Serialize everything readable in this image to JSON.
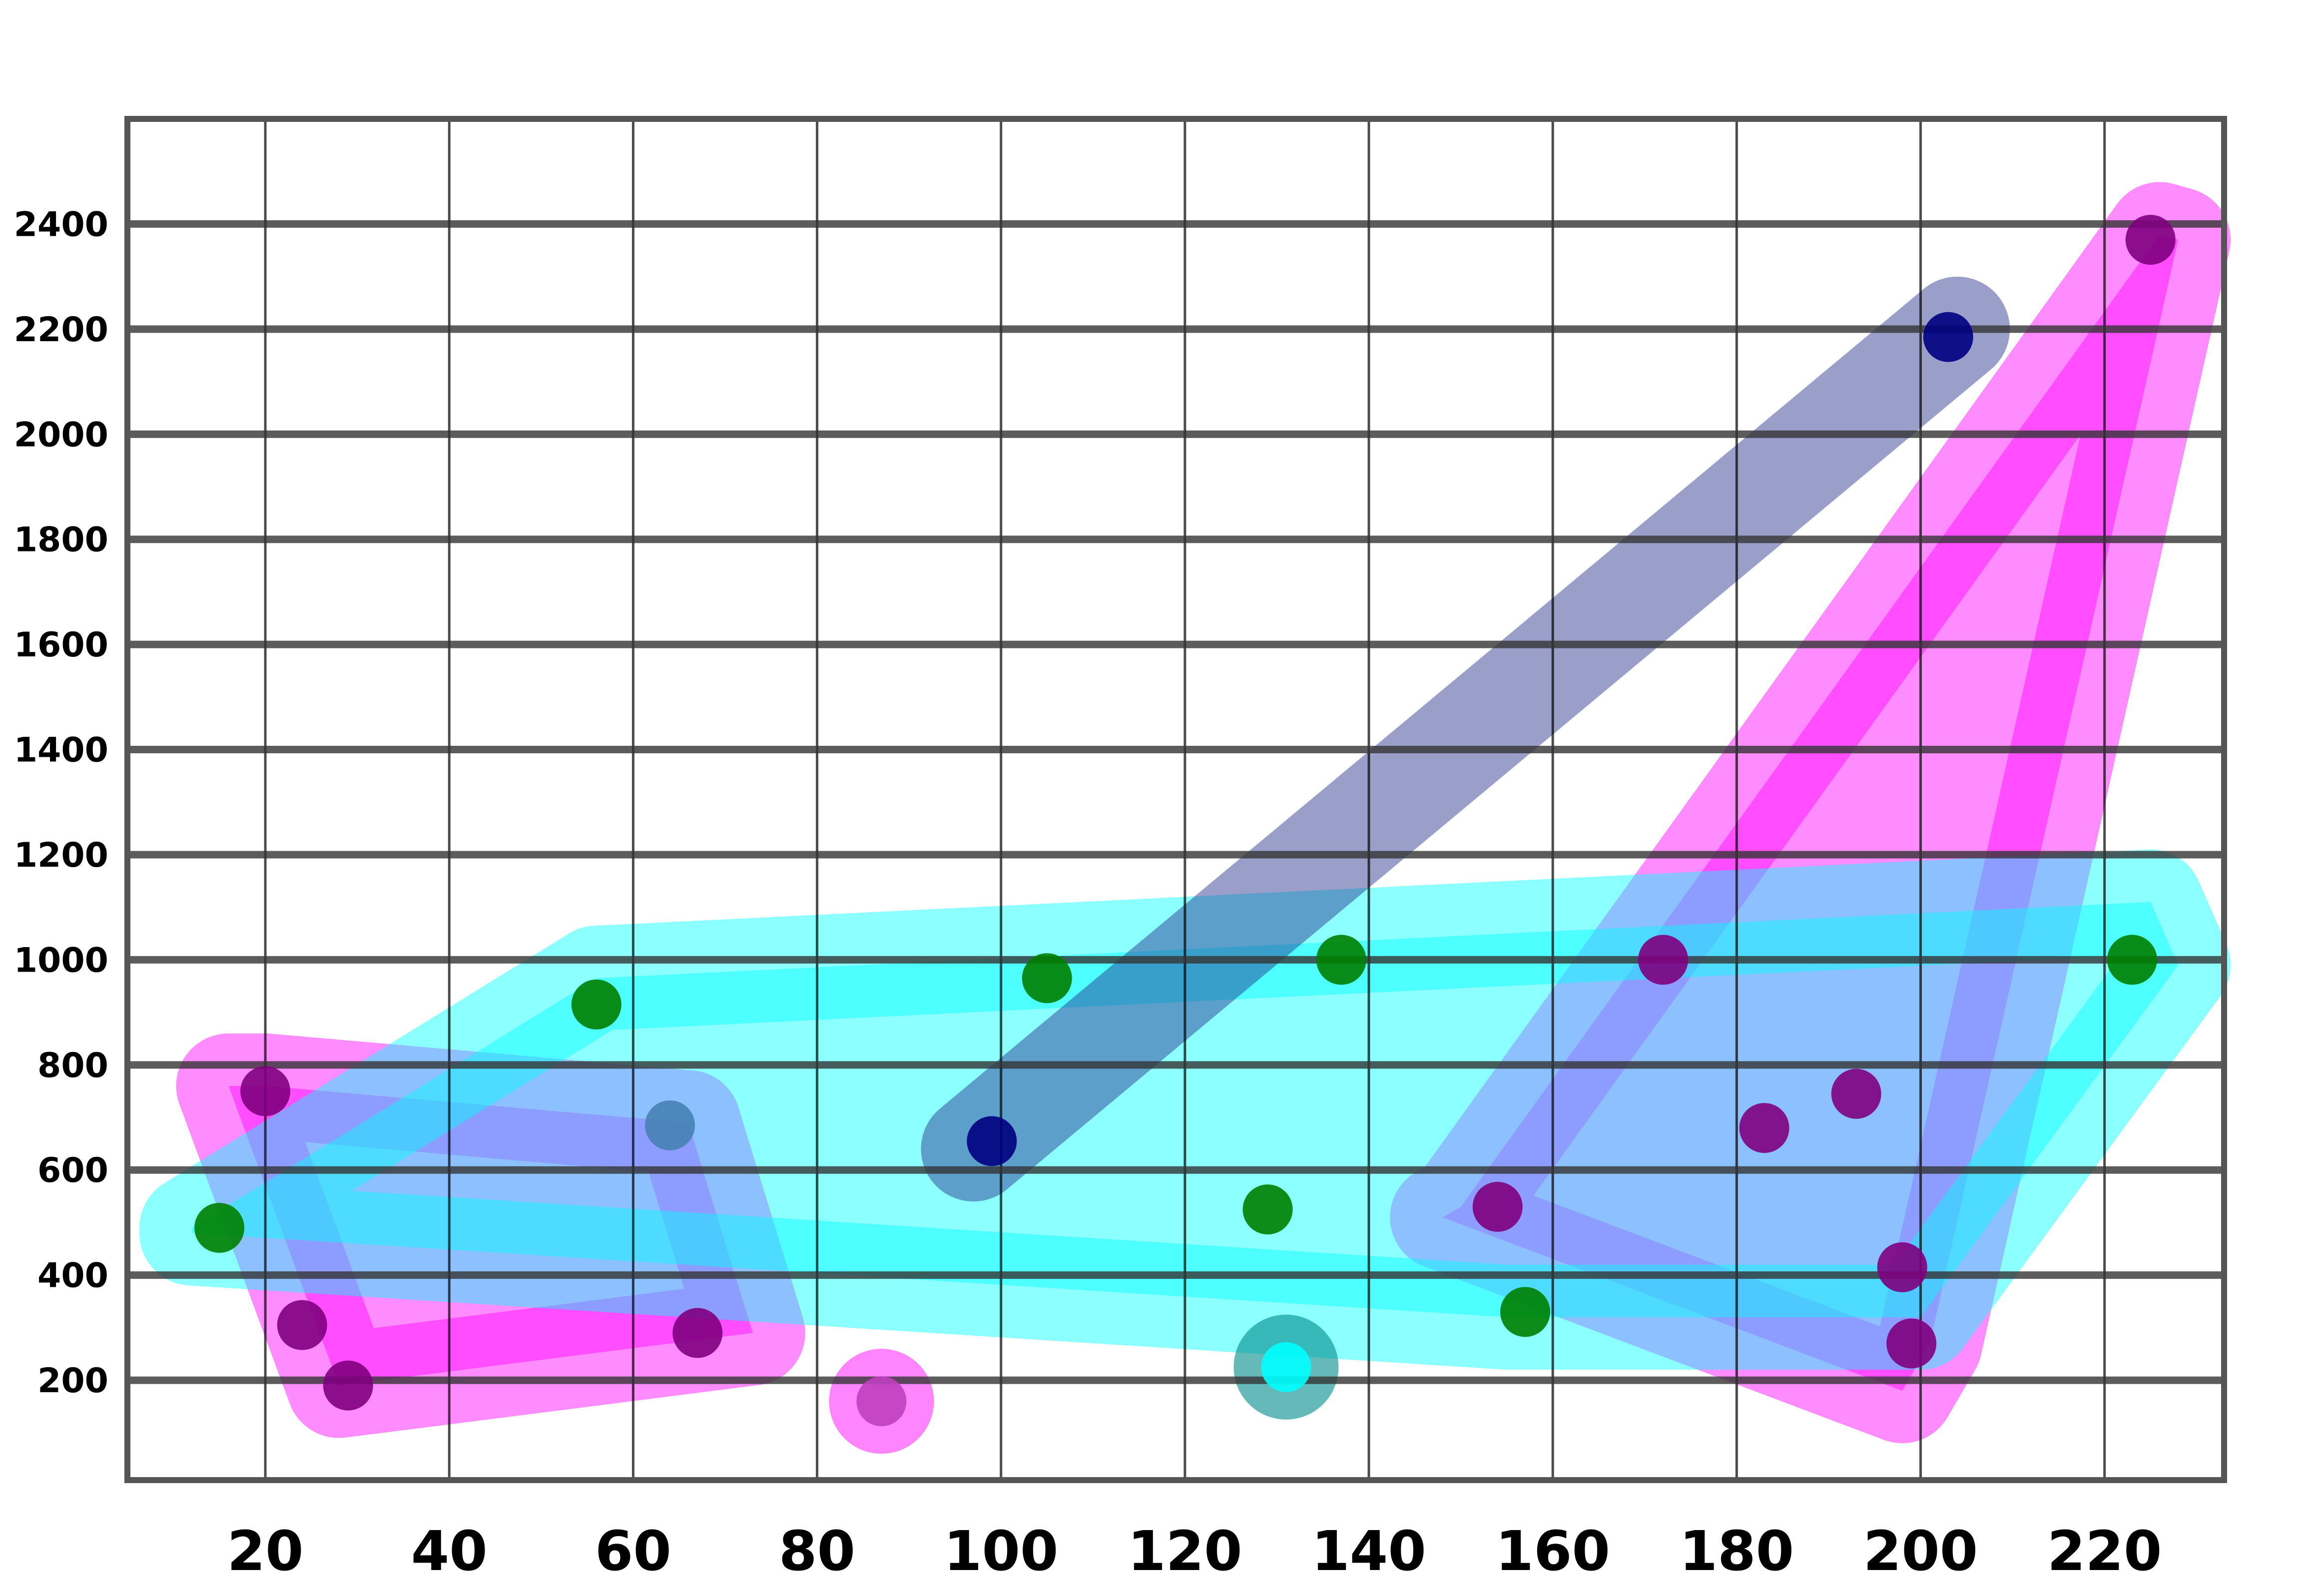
{
  "chart_data": {
    "type": "scatter",
    "title": "",
    "xlabel": "",
    "ylabel": "",
    "xlim": [
      5,
      233
    ],
    "ylim": [
      10,
      2600
    ],
    "x_ticks": [
      20,
      40,
      60,
      80,
      100,
      120,
      140,
      160,
      180,
      200,
      220
    ],
    "y_ticks": [
      200,
      400,
      600,
      800,
      1000,
      1200,
      1400,
      1600,
      1800,
      2000,
      2200,
      2400
    ],
    "x_tick_labels": [
      "20",
      "40",
      "60",
      "80",
      "100",
      "120",
      "140",
      "160",
      "180",
      "200",
      "220"
    ],
    "y_tick_labels": [
      "200",
      "400",
      "600",
      "800",
      "1000",
      "1200",
      "1400",
      "1600",
      "1800",
      "2000",
      "2200",
      "2400"
    ],
    "x_grid": true,
    "y_grid": true,
    "legend": "none",
    "series": [
      {
        "color": "#800080",
        "hull_color": "#ff00ff",
        "points": [
          [
            20,
            750
          ],
          [
            24,
            305
          ],
          [
            29,
            190
          ],
          [
            67,
            290
          ],
          [
            154,
            530
          ],
          [
            172,
            1000
          ],
          [
            183,
            680
          ],
          [
            193,
            745
          ],
          [
            198,
            415
          ],
          [
            199,
            270
          ],
          [
            225,
            2370
          ]
        ]
      },
      {
        "color": "#008000",
        "hull_color": "#00ffff",
        "points": [
          [
            15,
            490
          ],
          [
            56,
            915
          ],
          [
            105,
            965
          ],
          [
            129,
            525
          ],
          [
            137,
            1000
          ],
          [
            157,
            330
          ],
          [
            223,
            1000
          ]
        ]
      },
      {
        "color": "#000080",
        "hull_color": "#1f2a8a",
        "points": [
          [
            99,
            655
          ],
          [
            203,
            2185
          ]
        ]
      },
      {
        "color": "#4682b4",
        "hull_color": "#ffffff",
        "points": [
          [
            64,
            685
          ]
        ]
      },
      {
        "color": "#c040c0",
        "hull_color": "#ff33ff",
        "points": [
          [
            87,
            160
          ]
        ]
      },
      {
        "color": "#00ffff",
        "hull_color": "#008b8b",
        "points": [
          [
            131,
            225
          ]
        ]
      }
    ],
    "hulls": [
      {
        "series": 0,
        "polygon": [
          [
            20,
            760
          ],
          [
            66,
            690
          ],
          [
            73,
            290
          ],
          [
            28,
            190
          ],
          [
            16,
            760
          ]
        ]
      },
      {
        "series": 0,
        "polygon": [
          [
            150,
            530
          ],
          [
            226,
            2380
          ],
          [
            228,
            2370
          ],
          [
            201,
            270
          ],
          [
            198,
            180
          ],
          [
            148,
            510
          ]
        ]
      },
      {
        "series": 1,
        "polygon": [
          [
            12,
            490
          ],
          [
            56,
            965
          ],
          [
            225,
            1110
          ],
          [
            228,
            990
          ],
          [
            200,
            320
          ],
          [
            155,
            320
          ],
          [
            12,
            480
          ]
        ]
      },
      {
        "series": 2,
        "polygon": [
          [
            97,
            640
          ],
          [
            204,
            2200
          ]
        ]
      }
    ]
  }
}
